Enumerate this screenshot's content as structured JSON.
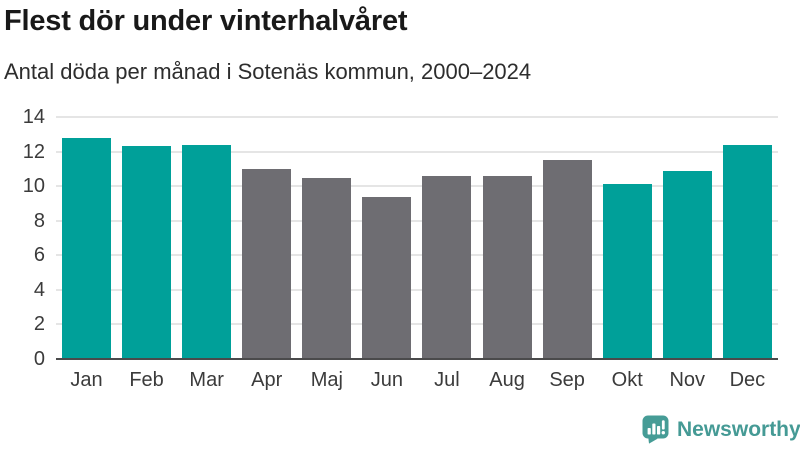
{
  "header": {
    "title": "Flest dör under vinterhalvåret",
    "subtitle": "Antal döda per månad i Sotenäs kommun, 2000–2024"
  },
  "chart_data": {
    "type": "bar",
    "title": "Flest dör under vinterhalvåret",
    "subtitle": "Antal döda per månad i Sotenäs kommun, 2000–2024",
    "categories": [
      "Jan",
      "Feb",
      "Mar",
      "Apr",
      "Maj",
      "Jun",
      "Jul",
      "Aug",
      "Sep",
      "Okt",
      "Nov",
      "Dec"
    ],
    "values": [
      12.8,
      12.3,
      12.4,
      11.0,
      10.5,
      9.4,
      10.6,
      10.6,
      11.5,
      10.1,
      10.9,
      12.4
    ],
    "bar_colors": [
      "teal",
      "teal",
      "teal",
      "gray",
      "gray",
      "gray",
      "gray",
      "gray",
      "gray",
      "teal",
      "teal",
      "teal"
    ],
    "colors": {
      "teal": "#00a099",
      "gray": "#6e6d72"
    },
    "color_note": "teal = winter half-year months (Okt–Mar), gray = summer half-year months (Apr–Sep)",
    "xlabel": "",
    "ylabel": "",
    "ylim": [
      0,
      14
    ],
    "yticks": [
      0,
      2,
      4,
      6,
      8,
      10,
      12,
      14
    ],
    "grid": "horizontal-light",
    "legend": "none"
  },
  "footer": {
    "brand": "Newsworthy",
    "logo_icon": "bar-chart-speech-bubble-icon",
    "brand_color": "#459a95"
  },
  "style_colors": {
    "background": "#ffffff",
    "gridline": "#e5e5e5",
    "axis_line": "#4a4a4b",
    "title_text": "#191919",
    "label_text": "#3b3b3b"
  }
}
